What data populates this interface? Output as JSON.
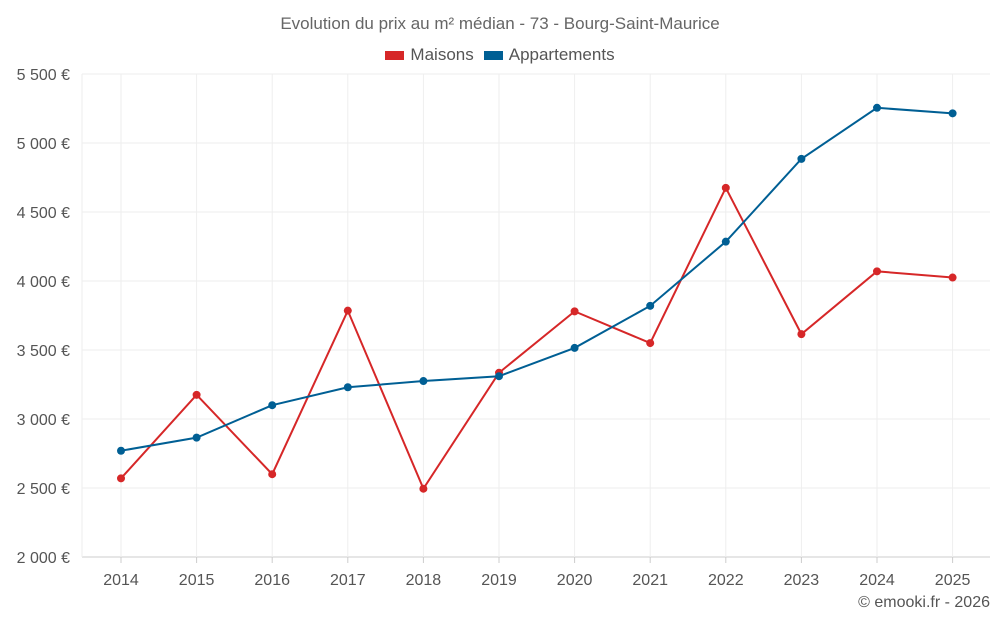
{
  "chart_data": {
    "type": "line",
    "title": "Evolution du prix au m² médian - 73 - Bourg-Saint-Maurice",
    "categories": [
      "2014",
      "2015",
      "2016",
      "2017",
      "2018",
      "2019",
      "2020",
      "2021",
      "2022",
      "2023",
      "2024",
      "2025"
    ],
    "series": [
      {
        "name": "Maisons",
        "color": "#d62728",
        "values": [
          2570,
          3175,
          2600,
          3785,
          2495,
          3335,
          3780,
          3550,
          4675,
          3615,
          4070,
          4025
        ]
      },
      {
        "name": "Appartements",
        "color": "#005f94",
        "values": [
          2770,
          2865,
          3100,
          3230,
          3275,
          3310,
          3515,
          3820,
          4285,
          4885,
          5255,
          5215
        ]
      }
    ],
    "y_ticks": [
      "2 000 €",
      "2 500 €",
      "3 000 €",
      "3 500 €",
      "4 000 €",
      "4 500 €",
      "5 000 €",
      "5 500 €"
    ],
    "y_tick_values": [
      2000,
      2500,
      3000,
      3500,
      4000,
      4500,
      5000,
      5500
    ],
    "ylim": [
      2000,
      5500
    ],
    "xlabel": "",
    "ylabel": "",
    "grid": true,
    "legend_position": "top-center"
  },
  "footer": "© emooki.fr - 2026"
}
